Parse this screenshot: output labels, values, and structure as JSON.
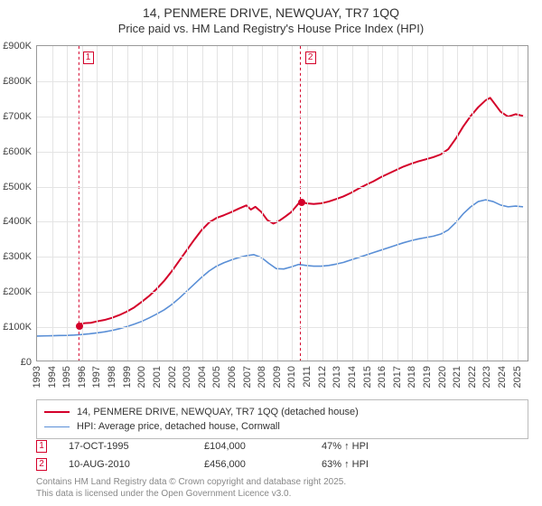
{
  "title": {
    "line1": "14, PENMERE DRIVE, NEWQUAY, TR7 1QQ",
    "line2": "Price paid vs. HM Land Registry's House Price Index (HPI)",
    "fontsize_line1": 14,
    "fontsize_line2": 13,
    "color": "#333333"
  },
  "chart": {
    "type": "line",
    "background_color": "#ffffff",
    "grid_color": "#e4e4e4",
    "border_color": "#999999",
    "x": {
      "min": 1993,
      "max": 2025.8,
      "ticks": [
        1993,
        1994,
        1995,
        1996,
        1997,
        1998,
        1999,
        2000,
        2001,
        2002,
        2003,
        2004,
        2005,
        2006,
        2007,
        2008,
        2009,
        2010,
        2011,
        2012,
        2013,
        2014,
        2015,
        2016,
        2017,
        2018,
        2019,
        2020,
        2021,
        2022,
        2023,
        2024,
        2025
      ]
    },
    "y": {
      "min": 0,
      "max": 900000,
      "ticks": [
        0,
        100000,
        200000,
        300000,
        400000,
        500000,
        600000,
        700000,
        800000,
        900000
      ],
      "tick_labels": [
        "£0",
        "£100K",
        "£200K",
        "£300K",
        "£400K",
        "£500K",
        "£600K",
        "£700K",
        "£800K",
        "£900K"
      ],
      "label_fontsize": 11
    },
    "series": [
      {
        "name": "14, PENMERE DRIVE, NEWQUAY, TR7 1QQ (detached house)",
        "color": "#d4002a",
        "width": 2,
        "points": [
          [
            1995.8,
            104000
          ],
          [
            1996.2,
            107000
          ],
          [
            1996.6,
            108000
          ],
          [
            1997.0,
            112000
          ],
          [
            1997.5,
            116000
          ],
          [
            1998.0,
            122000
          ],
          [
            1998.5,
            130000
          ],
          [
            1999.0,
            140000
          ],
          [
            1999.5,
            152000
          ],
          [
            2000.0,
            168000
          ],
          [
            2000.5,
            185000
          ],
          [
            2001.0,
            205000
          ],
          [
            2001.5,
            228000
          ],
          [
            2002.0,
            255000
          ],
          [
            2002.5,
            285000
          ],
          [
            2003.0,
            315000
          ],
          [
            2003.5,
            345000
          ],
          [
            2004.0,
            373000
          ],
          [
            2004.5,
            395000
          ],
          [
            2005.0,
            408000
          ],
          [
            2005.5,
            416000
          ],
          [
            2006.0,
            425000
          ],
          [
            2006.5,
            435000
          ],
          [
            2007.0,
            444000
          ],
          [
            2007.3,
            432000
          ],
          [
            2007.6,
            440000
          ],
          [
            2008.0,
            425000
          ],
          [
            2008.4,
            402000
          ],
          [
            2008.8,
            392000
          ],
          [
            2009.2,
            400000
          ],
          [
            2009.6,
            412000
          ],
          [
            2010.0,
            425000
          ],
          [
            2010.3,
            440000
          ],
          [
            2010.61,
            456000
          ],
          [
            2011.0,
            450000
          ],
          [
            2011.5,
            448000
          ],
          [
            2012.0,
            450000
          ],
          [
            2012.5,
            455000
          ],
          [
            2013.0,
            462000
          ],
          [
            2013.5,
            470000
          ],
          [
            2014.0,
            480000
          ],
          [
            2014.5,
            492000
          ],
          [
            2015.0,
            503000
          ],
          [
            2015.5,
            513000
          ],
          [
            2016.0,
            525000
          ],
          [
            2016.5,
            535000
          ],
          [
            2017.0,
            545000
          ],
          [
            2017.5,
            555000
          ],
          [
            2018.0,
            563000
          ],
          [
            2018.5,
            570000
          ],
          [
            2019.0,
            576000
          ],
          [
            2019.5,
            582000
          ],
          [
            2020.0,
            590000
          ],
          [
            2020.5,
            605000
          ],
          [
            2021.0,
            635000
          ],
          [
            2021.5,
            670000
          ],
          [
            2022.0,
            700000
          ],
          [
            2022.5,
            725000
          ],
          [
            2023.0,
            745000
          ],
          [
            2023.3,
            752000
          ],
          [
            2023.6,
            735000
          ],
          [
            2024.0,
            712000
          ],
          [
            2024.5,
            698000
          ],
          [
            2025.0,
            705000
          ],
          [
            2025.5,
            700000
          ]
        ]
      },
      {
        "name": "HPI: Average price, detached house, Cornwall",
        "color": "#5a8fd6",
        "width": 1.6,
        "points": [
          [
            1993.0,
            70000
          ],
          [
            1993.5,
            70500
          ],
          [
            1994.0,
            71000
          ],
          [
            1994.5,
            71500
          ],
          [
            1995.0,
            72000
          ],
          [
            1995.5,
            73000
          ],
          [
            1996.0,
            74500
          ],
          [
            1996.5,
            76500
          ],
          [
            1997.0,
            79000
          ],
          [
            1997.5,
            82000
          ],
          [
            1998.0,
            86000
          ],
          [
            1998.5,
            91000
          ],
          [
            1999.0,
            97000
          ],
          [
            1999.5,
            104000
          ],
          [
            2000.0,
            112000
          ],
          [
            2000.5,
            122000
          ],
          [
            2001.0,
            133000
          ],
          [
            2001.5,
            145000
          ],
          [
            2002.0,
            160000
          ],
          [
            2002.5,
            178000
          ],
          [
            2003.0,
            198000
          ],
          [
            2003.5,
            218000
          ],
          [
            2004.0,
            238000
          ],
          [
            2004.5,
            256000
          ],
          [
            2005.0,
            270000
          ],
          [
            2005.5,
            280000
          ],
          [
            2006.0,
            288000
          ],
          [
            2006.5,
            295000
          ],
          [
            2007.0,
            300000
          ],
          [
            2007.5,
            303000
          ],
          [
            2008.0,
            295000
          ],
          [
            2008.5,
            278000
          ],
          [
            2009.0,
            263000
          ],
          [
            2009.5,
            262000
          ],
          [
            2010.0,
            268000
          ],
          [
            2010.5,
            275000
          ],
          [
            2011.0,
            272000
          ],
          [
            2011.5,
            270000
          ],
          [
            2012.0,
            270000
          ],
          [
            2012.5,
            272000
          ],
          [
            2013.0,
            276000
          ],
          [
            2013.5,
            281000
          ],
          [
            2014.0,
            288000
          ],
          [
            2014.5,
            295000
          ],
          [
            2015.0,
            302000
          ],
          [
            2015.5,
            309000
          ],
          [
            2016.0,
            316000
          ],
          [
            2016.5,
            323000
          ],
          [
            2017.0,
            330000
          ],
          [
            2017.5,
            337000
          ],
          [
            2018.0,
            343000
          ],
          [
            2018.5,
            348000
          ],
          [
            2019.0,
            352000
          ],
          [
            2019.5,
            356000
          ],
          [
            2020.0,
            362000
          ],
          [
            2020.5,
            374000
          ],
          [
            2021.0,
            395000
          ],
          [
            2021.5,
            420000
          ],
          [
            2022.0,
            440000
          ],
          [
            2022.5,
            455000
          ],
          [
            2023.0,
            460000
          ],
          [
            2023.5,
            455000
          ],
          [
            2024.0,
            445000
          ],
          [
            2024.5,
            440000
          ],
          [
            2025.0,
            442000
          ],
          [
            2025.5,
            440000
          ]
        ]
      }
    ],
    "sale_events": [
      {
        "n": "1",
        "x": 1995.8,
        "date": "17-OCT-1995",
        "price": "£104,000",
        "delta": "47% ↑ HPI",
        "dot_color": "#d4002a",
        "box_color": "#d4002a"
      },
      {
        "n": "2",
        "x": 2010.61,
        "date": "10-AUG-2010",
        "price": "£456,000",
        "delta": "63% ↑ HPI",
        "dot_color": "#d4002a",
        "box_color": "#d4002a"
      }
    ]
  },
  "legend": {
    "border_color": "#bbbbbb",
    "fontsize": 11
  },
  "footer": {
    "line1": "Contains HM Land Registry data © Crown copyright and database right 2025.",
    "line2": "This data is licensed under the Open Government Licence v3.0.",
    "color": "#888888",
    "fontsize": 10
  }
}
